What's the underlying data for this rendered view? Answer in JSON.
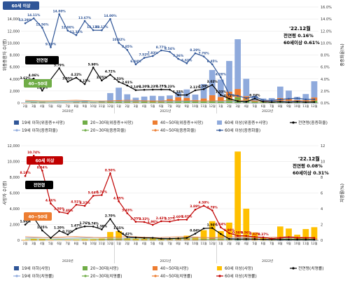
{
  "colors": {
    "age19": "#2f5597",
    "age20_30": "#70ad47",
    "age40_50": "#ed7d31",
    "age60": "#8faadc",
    "age60_p2": "#ffc000",
    "black": "#000000",
    "red": "#c00000",
    "sixty_line_top": "#2f5597"
  },
  "chart_data": [
    {
      "type": "bar",
      "title": "",
      "ylabel": "위중증환자 수(명)",
      "y2label": "중증화율(%)",
      "ylim": [
        0,
        16000
      ],
      "y2lim": [
        0,
        16
      ],
      "yticks": [
        "0",
        "2,000",
        "4,000",
        "6,000",
        "8,000",
        "10,000",
        "12,000",
        "14,000",
        "16,000"
      ],
      "y2ticks": [
        "0.0%",
        "2.0%",
        "4.0%",
        "6.0%",
        "8.0%",
        "10.0%",
        "12.0%",
        "14.0%",
        "16.0%"
      ],
      "months": [
        "2월",
        "3월",
        "4월",
        "5월",
        "6월",
        "7월",
        "8월",
        "9월",
        "10월",
        "11월",
        "12월",
        "1월",
        "2월",
        "3월",
        "4월",
        "5월",
        "6월",
        "7월",
        "8월",
        "9월",
        "10월",
        "11월",
        "12월",
        "1월",
        "2월",
        "3월",
        "4월",
        "5월",
        "6월",
        "7월",
        "8월",
        "9월",
        "10월",
        "11월",
        "12월"
      ],
      "years": [
        {
          "label": "2020년",
          "start": 0,
          "end": 10
        },
        {
          "label": "2021년",
          "start": 11,
          "end": 22
        },
        {
          "label": "2022년",
          "start": 23,
          "end": 34
        }
      ],
      "bar_series": [
        {
          "name": "19세 이하(위중증+사망)",
          "values": [
            0,
            0,
            0,
            0,
            0,
            0,
            0,
            0,
            0,
            0,
            0,
            0,
            0,
            0,
            0,
            0,
            0,
            0,
            0,
            0,
            0,
            0,
            0,
            0,
            0,
            30,
            40,
            10,
            0,
            0,
            30,
            20,
            10,
            10,
            20
          ]
        },
        {
          "name": "20~30대(위중증+사망)",
          "values": [
            0,
            10,
            10,
            0,
            0,
            0,
            20,
            20,
            10,
            30,
            100,
            150,
            100,
            80,
            120,
            100,
            100,
            200,
            300,
            300,
            150,
            250,
            400,
            300,
            700,
            900,
            500,
            150,
            100,
            120,
            300,
            250,
            150,
            180,
            350
          ]
        },
        {
          "name": "40~50대(위중증+사망)",
          "values": [
            10,
            30,
            30,
            0,
            0,
            10,
            40,
            40,
            20,
            60,
            250,
            300,
            250,
            200,
            250,
            200,
            250,
            450,
            650,
            550,
            350,
            500,
            900,
            700,
            1200,
            1400,
            600,
            200,
            150,
            200,
            500,
            400,
            250,
            300,
            550
          ]
        },
        {
          "name": "60세 이상(위중증+사망)",
          "values": [
            50,
            200,
            200,
            50,
            40,
            50,
            150,
            300,
            150,
            250,
            1300,
            2100,
            1100,
            600,
            700,
            900,
            800,
            600,
            900,
            1400,
            900,
            2400,
            4200,
            2900,
            5100,
            8300,
            2900,
            800,
            500,
            500,
            1900,
            1400,
            600,
            1000,
            2700
          ]
        }
      ],
      "line_series": [
        {
          "name": "전연령(중증화율)",
          "values": [
            3.62,
            4.06,
            2.07,
            null,
            5.79,
            3.55,
            4.22,
            3.15,
            5.9,
            3.75,
            4.72,
            3.53,
            2.91,
            2.14,
            2.2,
            2.23,
            2.25,
            2.23,
            1.33,
            1.33,
            2.11,
            2.3,
            3.02,
            1.33,
            0.72,
            0.3,
            0.2,
            0.74,
            0.2,
            0.15,
            0.2,
            0.12,
            0.2,
            0.13,
            0.16
          ],
          "labels": [
            "3.62%",
            "4.06%",
            "2.07%",
            "",
            "5.79%",
            "3.55%",
            "4.22%",
            "3.15%",
            "5.90%",
            "3.75%",
            "4.72%",
            "3.53%",
            "2.91%",
            "2.14%",
            "2.20%",
            "2.23%",
            "2.25%",
            "2.23%",
            "1.33%",
            "",
            "2.11%",
            "2.30%",
            "3.02%",
            "1.33%",
            "0.72%",
            "",
            "",
            "0.74%",
            "",
            "",
            "",
            "",
            "",
            "",
            ""
          ]
        },
        {
          "name": "60세 이상(중증화율)",
          "values": [
            13.29,
            14.11,
            12.56,
            9.3,
            14.8,
            12.06,
            11.32,
            13.67,
            12.13,
            12.12,
            14.0,
            10.02,
            8.85,
            6.44,
            7.52,
            7.83,
            8.77,
            8.54,
            7.36,
            6.62,
            8.29,
            7.76,
            6.45,
            4.28,
            1.45,
            1.2,
            0.8,
            1.06,
            0.46,
            0.42,
            0.6,
            0.7,
            0.8,
            0.6,
            0.61
          ],
          "labels": [
            "13.29%",
            "14.11%",
            "12.56%",
            "9.30%",
            "14.80%",
            "12.06%",
            "11.32%",
            "13.67%",
            "12.13%",
            "12.12%",
            "14.00%",
            "10.02%",
            "8.85%",
            "6.44%",
            "7.52%",
            "7.83%",
            "8.77%",
            "8.54%",
            "7.36%",
            "6.62%",
            "8.29%",
            "7.76%",
            "6.45%",
            "4.28%",
            "",
            "",
            "",
            "",
            "",
            "",
            "",
            "",
            "",
            "",
            ""
          ]
        }
      ],
      "annotation": {
        "date": "'22.12월",
        "line1": "전연령 0.16%",
        "line2": "60세이상 0.61%"
      },
      "callouts": {
        "sixty": "60세 이상",
        "all": "전연령",
        "forty": "40~50대"
      },
      "legend": [
        {
          "label": "19세 이하(위중증+사망)",
          "kind": "bar",
          "color": "#2f5597"
        },
        {
          "label": "20~30대(위중증+사망)",
          "kind": "bar",
          "color": "#70ad47"
        },
        {
          "label": "40~50대(위중증+사망)",
          "kind": "bar",
          "color": "#ed7d31"
        },
        {
          "label": "60세 이상(위중증+사망)",
          "kind": "bar",
          "color": "#8faadc"
        },
        {
          "label": "전연령(중증화율)",
          "kind": "line",
          "color": "#000000"
        },
        {
          "label": "19세 이하(중증화율)",
          "kind": "line",
          "color": "#8faadc"
        },
        {
          "label": "20~30대(중증화율)",
          "kind": "line",
          "color": "#70ad47"
        },
        {
          "label": "40~50대(중증화율)",
          "kind": "line",
          "color": "#ed7d31"
        },
        {
          "label": "60세 이상(중증화율)",
          "kind": "line",
          "color": "#2f5597"
        }
      ]
    },
    {
      "type": "bar",
      "title": "",
      "ylabel": "사망자 수(명)",
      "y2label": "치명률(%)",
      "ylim": [
        0,
        12000
      ],
      "y2lim": [
        0,
        12
      ],
      "yticks": [
        "0",
        "2,000",
        "4,000",
        "6,000",
        "8,000",
        "10,000",
        "12,000"
      ],
      "y2ticks": [
        "0",
        "2",
        "4",
        "6",
        "8",
        "10",
        "12"
      ],
      "months": [
        "2월",
        "3월",
        "4월",
        "5월",
        "6월",
        "7월",
        "8월",
        "9월",
        "10월",
        "11월",
        "12월",
        "1월",
        "2월",
        "3월",
        "4월",
        "5월",
        "6월",
        "7월",
        "8월",
        "9월",
        "10월",
        "11월",
        "12월",
        "1월",
        "2월",
        "3월",
        "4월",
        "5월",
        "6월",
        "7월",
        "8월",
        "9월",
        "10월",
        "11월",
        "12월"
      ],
      "years": [
        {
          "label": "2020년",
          "start": 0,
          "end": 10
        },
        {
          "label": "2021년",
          "start": 11,
          "end": 22
        },
        {
          "label": "2022년",
          "start": 23,
          "end": 34
        }
      ],
      "bar_series": [
        {
          "name": "19세 이하(사망)",
          "values": [
            0,
            0,
            0,
            0,
            0,
            0,
            0,
            0,
            0,
            0,
            0,
            0,
            0,
            0,
            0,
            0,
            0,
            0,
            0,
            0,
            0,
            0,
            0,
            0,
            0,
            10,
            10,
            0,
            0,
            0,
            10,
            5,
            5,
            5,
            10
          ]
        },
        {
          "name": "20~30대(사망)",
          "values": [
            0,
            5,
            5,
            0,
            0,
            0,
            5,
            5,
            5,
            10,
            30,
            30,
            10,
            10,
            10,
            10,
            10,
            20,
            30,
            30,
            20,
            40,
            60,
            30,
            60,
            100,
            50,
            20,
            10,
            10,
            40,
            30,
            20,
            20,
            50
          ]
        },
        {
          "name": "40~50대(사망)",
          "values": [
            5,
            20,
            20,
            5,
            0,
            5,
            10,
            10,
            10,
            30,
            120,
            130,
            50,
            40,
            40,
            40,
            40,
            60,
            100,
            100,
            80,
            140,
            260,
            140,
            280,
            450,
            250,
            70,
            40,
            40,
            200,
            150,
            80,
            100,
            200
          ]
        },
        {
          "name": "60세 이상(사망)",
          "values": [
            50,
            150,
            150,
            30,
            20,
            30,
            50,
            80,
            80,
            180,
            900,
            1000,
            250,
            150,
            150,
            200,
            200,
            150,
            200,
            450,
            350,
            1100,
            2100,
            1000,
            1900,
            10700,
            3700,
            900,
            300,
            200,
            1500,
            1300,
            600,
            1300,
            1400
          ]
        }
      ],
      "line_series": [
        {
          "name": "전연령(치명률)",
          "values": [
            1.99,
            2.87,
            1.25,
            0.3,
            1.2,
            0.73,
            1.47,
            1.76,
            1.74,
            1.38,
            2.7,
            1.15,
            0.42,
            0.35,
            0.3,
            0.31,
            0.2,
            0.21,
            0.25,
            0.3,
            0.84,
            1.5,
            1.56,
            0.8,
            0.17,
            0.14,
            0.15,
            0.15,
            0.12,
            0.1,
            0.08,
            0.09,
            0.08,
            0.08,
            0.08
          ],
          "labels": [
            "1.99%",
            "2.87%",
            "1.25%",
            "",
            "1.20%",
            "0.73%",
            "1.47%",
            "1.76%",
            "1.74%",
            "1.38%",
            "2.70%",
            "1.15%",
            "0.42%",
            "",
            "",
            "",
            "",
            "",
            "",
            "",
            "0.84%",
            "",
            "1.56%",
            "",
            "",
            "",
            "",
            "",
            "",
            "",
            "",
            "",
            "",
            "",
            ""
          ]
        },
        {
          "name": "60세 이상(치명률)",
          "values": [
            8.16,
            10.74,
            8.84,
            4.66,
            3.59,
            3.4,
            4.51,
            4.37,
            5.64,
            5.74,
            8.5,
            4.95,
            3.43,
            2.35,
            2.32,
            1.96,
            2.42,
            2.37,
            2.6,
            2.62,
            3.89,
            4.38,
            3.79,
            1.64,
            0.9,
            0.58,
            0.56,
            0.42,
            0.37,
            0.21,
            0.3,
            0.4,
            0.3,
            0.3,
            0.31
          ],
          "labels": [
            "8.16%",
            "10.74%",
            "8.84%",
            "4.66%",
            "3.59%",
            "3.40%",
            "4.51%",
            "4.37%",
            "5.64%",
            "5.74%",
            "8.50%",
            "4.95%",
            "3.43%",
            "2.35%",
            "2.32%",
            "1.96%",
            "2.42%",
            "2.37%",
            "2.60%",
            "2.62%",
            "3.89%",
            "4.38%",
            "3.79%",
            "1.64%",
            "0.90%",
            "0.58%",
            "0.56%",
            "0.42%",
            "0.37%",
            "",
            "",
            "",
            "",
            "",
            ""
          ]
        }
      ],
      "annotation": {
        "date": "'22.12월",
        "line1": "전연령 0.08%",
        "line2": "60세이상 0.31%"
      },
      "callouts": {
        "sixty": "60세 이상",
        "all": "전연령",
        "forty": "40~50대"
      },
      "legend": [
        {
          "label": "19세 이하(사망)",
          "kind": "bar",
          "color": "#2f5597"
        },
        {
          "label": "20~30대(사망)",
          "kind": "bar",
          "color": "#70ad47"
        },
        {
          "label": "40~50대(사망)",
          "kind": "bar",
          "color": "#ed7d31"
        },
        {
          "label": "60세 이상(사망)",
          "kind": "bar",
          "color": "#ffc000"
        },
        {
          "label": "전연령(치명률)",
          "kind": "line",
          "color": "#000000"
        },
        {
          "label": "19세 이하(치명률)",
          "kind": "line",
          "color": "#8faadc"
        },
        {
          "label": "20~30대(치명률)",
          "kind": "line",
          "color": "#70ad47"
        },
        {
          "label": "40~50대(치명률)",
          "kind": "line",
          "color": "#ed7d31"
        },
        {
          "label": "60세 이상(치명률)",
          "kind": "line",
          "color": "#c00000"
        }
      ]
    }
  ]
}
